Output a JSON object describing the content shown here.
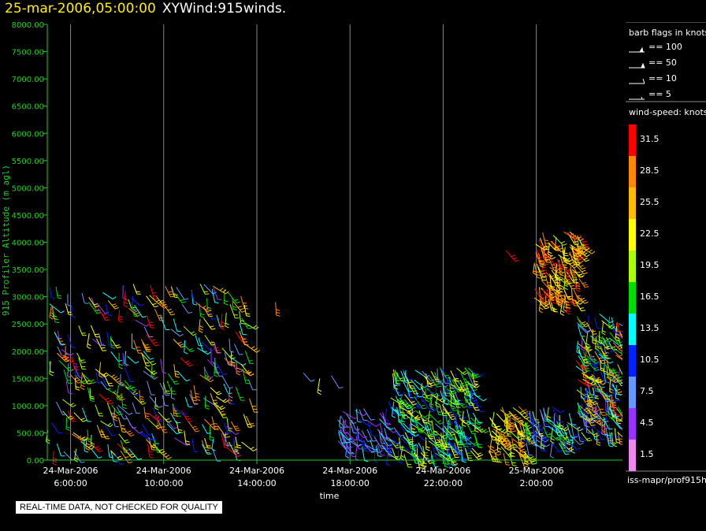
{
  "header": {
    "date": "25-mar-2006,05:00:00",
    "name": "XYWind:915winds."
  },
  "colors": {
    "background": "#000000",
    "axis_color": "#22cc22",
    "title_date_color": "#ffee00",
    "gridline_color": "#888888"
  },
  "chart_data": {
    "type": "scatter",
    "plot_style": "wind barbs",
    "title": "XYWind:915winds.",
    "xlabel": "time",
    "ylabel": "915 Profiler Altitude (m agl)",
    "x_range_hours": [
      5.0,
      29.7
    ],
    "ylim": [
      0,
      8000
    ],
    "y_ticks": [
      "0.00",
      "500.00",
      "1000.00",
      "1500.00",
      "2000.00",
      "2500.00",
      "3000.00",
      "3500.00",
      "4000.00",
      "4500.00",
      "5000.00",
      "5500.00",
      "6000.00",
      "6500.00",
      "7000.00",
      "7500.00",
      "8000.00"
    ],
    "x_ticks": [
      {
        "hour": 6,
        "date": "24-Mar-2006",
        "time": "6:00:00"
      },
      {
        "hour": 10,
        "date": "24-Mar-2006",
        "time": "10:00:00"
      },
      {
        "hour": 14,
        "date": "24-Mar-2006",
        "time": "14:00:00"
      },
      {
        "hour": 18,
        "date": "24-Mar-2006",
        "time": "18:00:00"
      },
      {
        "hour": 22,
        "date": "24-Mar-2006",
        "time": "22:00:00"
      },
      {
        "hour": 26,
        "date": "25-Mar-2006",
        "time": "2:00:00"
      }
    ],
    "grid": "vertical lines at x ticks",
    "barb_flags_title": "barb flags in knots",
    "barb_flags": [
      "== 100",
      "== 50",
      "== 10",
      "== 5"
    ],
    "colorbar_title": "wind-speed: knots",
    "colorbar": [
      {
        "value": "31.5",
        "color": "#ff0000"
      },
      {
        "value": "28.5",
        "color": "#ff8800"
      },
      {
        "value": "25.5",
        "color": "#ffbb00"
      },
      {
        "value": "22.5",
        "color": "#ffff00"
      },
      {
        "value": "19.5",
        "color": "#aaff00"
      },
      {
        "value": "16.5",
        "color": "#00dd00"
      },
      {
        "value": "13.5",
        "color": "#00ffff"
      },
      {
        "value": "10.5",
        "color": "#0022ff"
      },
      {
        "value": "7.5",
        "color": "#6699ff"
      },
      {
        "value": "4.5",
        "color": "#9933ff"
      },
      {
        "value": "1.5",
        "color": "#ee88ee"
      }
    ],
    "data_clusters": [
      {
        "hour_range": [
          5.0,
          13.7
        ],
        "alt_range": [
          150,
          3250
        ],
        "speed_range": [
          4,
          33
        ]
      },
      {
        "hour_range": [
          17.4,
          19.6
        ],
        "alt_range": [
          250,
          950
        ],
        "speed_range": [
          3,
          14
        ]
      },
      {
        "hour_range": [
          19.6,
          23.4
        ],
        "alt_range": [
          100,
          1700
        ],
        "speed_range": [
          8,
          24
        ]
      },
      {
        "hour_range": [
          23.9,
          25.6
        ],
        "alt_range": [
          100,
          1000
        ],
        "speed_range": [
          17,
          30
        ]
      },
      {
        "hour_range": [
          25.5,
          27.7
        ],
        "alt_range": [
          300,
          1000
        ],
        "speed_range": [
          6,
          22
        ]
      },
      {
        "hour_range": [
          27.7,
          29.6
        ],
        "alt_range": [
          500,
          2700
        ],
        "speed_range": [
          5,
          32
        ]
      },
      {
        "hour_range": [
          25.9,
          27.9
        ],
        "alt_range": [
          2900,
          4200
        ],
        "speed_range": [
          20,
          33
        ]
      }
    ],
    "scattered_barbs": [
      {
        "hour": 14.8,
        "alt": 2900,
        "speed": 27
      },
      {
        "hour": 16.0,
        "alt": 1600,
        "speed": 8
      },
      {
        "hour": 16.7,
        "alt": 1500,
        "speed": 23
      },
      {
        "hour": 17.2,
        "alt": 1550,
        "speed": 6
      },
      {
        "hour": 24.7,
        "alt": 3850,
        "speed": 31
      }
    ]
  },
  "legend": {
    "source_label": "iss-mapr/prof915h"
  },
  "footer": {
    "note": "REAL-TIME DATA, NOT CHECKED FOR QUALITY"
  }
}
